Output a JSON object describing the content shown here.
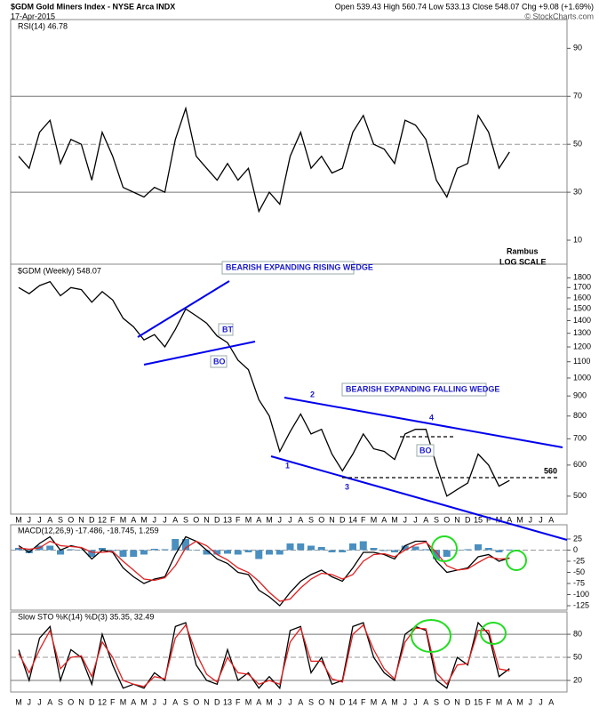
{
  "header": {
    "title": "$GDM Gold Miners Index - NYSE Arca INDX",
    "date": "17-Apr-2015",
    "quote": "Open 539.43 High 560.74 Low 533.13 Close 548.07 Chg +9.08 (+1.69%)",
    "credit": "© StockCharts.com"
  },
  "chart_data": [
    {
      "type": "line",
      "label": "RSI(14) 46.78",
      "ylim": [
        0,
        102
      ],
      "yticks": [
        90,
        70,
        50,
        30,
        10
      ],
      "hlines": [
        70,
        50,
        30
      ],
      "series": [
        {
          "color": "#000000",
          "values": [
            45,
            40,
            55,
            60,
            42,
            52,
            50,
            35,
            55,
            45,
            32,
            30,
            28,
            32,
            30,
            52,
            65,
            45,
            40,
            35,
            42,
            35,
            40,
            22,
            30,
            25,
            45,
            55,
            40,
            45,
            38,
            40,
            55,
            62,
            50,
            48,
            42,
            60,
            58,
            52,
            35,
            28,
            40,
            42,
            62,
            55,
            40,
            46.78,
            null,
            null,
            null,
            null
          ]
        }
      ]
    },
    {
      "type": "line",
      "label": "$GDM (Weekly) 548.07",
      "log": true,
      "ylim": [
        450,
        1950
      ],
      "yticks": [
        1800,
        1700,
        1600,
        1500,
        1400,
        1300,
        1200,
        1100,
        1000,
        900,
        800,
        700,
        600,
        500
      ],
      "categories": [
        "M",
        "J",
        "J",
        "A",
        "S",
        "O",
        "N",
        "D",
        "12",
        "F",
        "M",
        "A",
        "M",
        "J",
        "J",
        "A",
        "S",
        "O",
        "N",
        "D",
        "13",
        "F",
        "M",
        "A",
        "M",
        "J",
        "J",
        "A",
        "S",
        "O",
        "N",
        "D",
        "14",
        "F",
        "M",
        "A",
        "M",
        "J",
        "J",
        "A",
        "S",
        "O",
        "N",
        "D",
        "15",
        "F",
        "M",
        "A",
        "M",
        "J",
        "J",
        "A"
      ],
      "annotations": [
        "BEARISH EXPANDING RISING WEDGE",
        "BT",
        "BO",
        "BEARISH EXPANDING FALLING WEDGE",
        "1",
        "2",
        "3",
        "4",
        "BO",
        "560",
        "Rambus",
        "LOG SCALE"
      ],
      "series": [
        {
          "color": "#000000",
          "values": [
            1700,
            1640,
            1720,
            1760,
            1620,
            1700,
            1680,
            1560,
            1660,
            1580,
            1420,
            1350,
            1250,
            1290,
            1200,
            1330,
            1500,
            1440,
            1380,
            1280,
            1230,
            1110,
            1050,
            880,
            800,
            650,
            730,
            810,
            720,
            740,
            640,
            580,
            640,
            720,
            660,
            650,
            620,
            720,
            740,
            740,
            600,
            500,
            520,
            540,
            640,
            600,
            530,
            548.07,
            null,
            null,
            null,
            null
          ]
        }
      ]
    },
    {
      "type": "line",
      "label": "MACD(12,26,9) -17.486, -18.745, 1.259",
      "ylim": [
        -135,
        57
      ],
      "yticks": [
        25,
        0,
        -25,
        -50,
        -75,
        -100,
        -125
      ],
      "hlines": [
        0
      ],
      "series": [
        {
          "kind": "bar",
          "color": "#4a8fc0",
          "values": [
            5,
            -7,
            10,
            10,
            -10,
            2,
            -1,
            -15,
            5,
            -2,
            -15,
            -15,
            -10,
            3,
            2,
            25,
            25,
            0,
            -10,
            -10,
            -8,
            -10,
            -5,
            -20,
            -10,
            -10,
            15,
            15,
            10,
            7,
            -5,
            -5,
            15,
            20,
            5,
            -2,
            -5,
            10,
            8,
            2,
            -20,
            -15,
            0,
            2,
            13,
            5,
            -5,
            1.259,
            null,
            null,
            null,
            null
          ]
        },
        {
          "color": "#000000",
          "values": [
            10,
            -5,
            15,
            30,
            0,
            10,
            5,
            -20,
            0,
            -5,
            -40,
            -60,
            -75,
            -65,
            -60,
            -10,
            30,
            20,
            0,
            -20,
            -30,
            -50,
            -55,
            -90,
            -105,
            -125,
            -95,
            -70,
            -55,
            -45,
            -60,
            -70,
            -40,
            -5,
            -5,
            -10,
            -20,
            10,
            20,
            20,
            -25,
            -50,
            -45,
            -40,
            -15,
            -10,
            -25,
            -17.486,
            null,
            null,
            null,
            null
          ]
        },
        {
          "color": "#e02020",
          "values": [
            5,
            2,
            5,
            20,
            10,
            8,
            6,
            -5,
            -5,
            -3,
            -25,
            -45,
            -65,
            -68,
            -62,
            -35,
            5,
            20,
            10,
            -10,
            -22,
            -40,
            -50,
            -70,
            -95,
            -115,
            -110,
            -85,
            -65,
            -52,
            -55,
            -65,
            -55,
            -25,
            -10,
            -8,
            -15,
            0,
            12,
            18,
            -5,
            -35,
            -45,
            -42,
            -28,
            -15,
            -20,
            -18.745,
            null,
            null,
            null,
            null
          ]
        }
      ]
    },
    {
      "type": "line",
      "label": "Slow STO %K(14) %D(3) 35.35, 32.49",
      "ylim": [
        5,
        109
      ],
      "yticks": [
        80,
        50,
        20
      ],
      "hlines": [
        80,
        50,
        20
      ],
      "categories": [
        "M",
        "J",
        "J",
        "A",
        "S",
        "O",
        "N",
        "D",
        "12",
        "F",
        "M",
        "A",
        "M",
        "J",
        "J",
        "A",
        "S",
        "O",
        "N",
        "D",
        "13",
        "F",
        "M",
        "A",
        "M",
        "J",
        "J",
        "A",
        "S",
        "O",
        "N",
        "D",
        "14",
        "F",
        "M",
        "A",
        "M",
        "J",
        "J",
        "A",
        "S",
        "O",
        "N",
        "D",
        "15",
        "F",
        "M",
        "A",
        "M",
        "J",
        "J",
        "A"
      ],
      "series": [
        {
          "color": "#000000",
          "values": [
            60,
            20,
            75,
            90,
            20,
            60,
            50,
            15,
            80,
            40,
            10,
            15,
            10,
            30,
            20,
            90,
            95,
            40,
            20,
            15,
            60,
            20,
            30,
            10,
            25,
            10,
            85,
            90,
            30,
            50,
            15,
            20,
            90,
            95,
            50,
            30,
            20,
            80,
            90,
            85,
            20,
            10,
            50,
            40,
            95,
            80,
            25,
            35.35,
            null,
            null,
            null,
            null
          ]
        },
        {
          "color": "#e02020",
          "values": [
            55,
            30,
            60,
            85,
            35,
            50,
            52,
            25,
            70,
            50,
            20,
            15,
            12,
            25,
            22,
            75,
            92,
            55,
            28,
            18,
            50,
            30,
            28,
            15,
            20,
            15,
            70,
            88,
            45,
            45,
            22,
            18,
            80,
            92,
            60,
            35,
            22,
            70,
            88,
            87,
            30,
            15,
            40,
            42,
            85,
            85,
            35,
            32.49,
            null,
            null,
            null,
            null
          ]
        }
      ]
    }
  ]
}
